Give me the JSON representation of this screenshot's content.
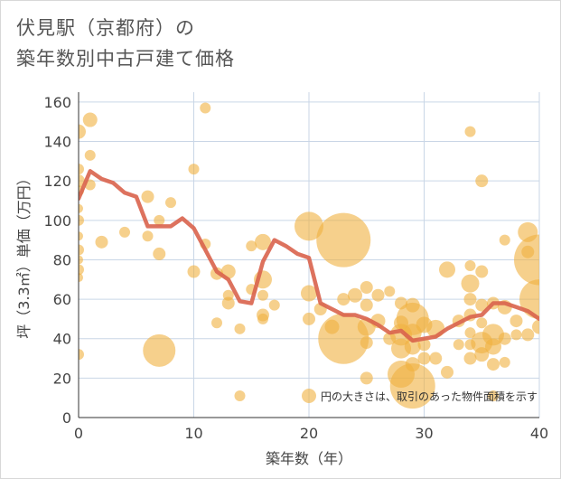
{
  "title_lines": [
    "伏見駅（京都府）の",
    "築年数別中古戸建て価格"
  ],
  "colors": {
    "bubble": "#f0b040",
    "line": "#d9634d",
    "grid": "#c9d6e6",
    "axis": "#333333"
  },
  "chart_data": {
    "type": "scatter",
    "title": "伏見駅（京都府）の 築年数別中古戸建て価格",
    "xlabel": "築年数（年）",
    "ylabel": "坪（3.3㎡）単価（万円）",
    "xlim": [
      0,
      40
    ],
    "ylim": [
      0,
      165
    ],
    "xticks": [
      0,
      10,
      20,
      30,
      40
    ],
    "yticks": [
      0,
      20,
      40,
      60,
      80,
      100,
      120,
      140,
      160
    ],
    "grid": true,
    "note": "円の大きさは、取引のあった物件面積を示す",
    "bubbles": [
      {
        "x": 0,
        "y": 145,
        "r": 8
      },
      {
        "x": 0,
        "y": 126,
        "r": 6
      },
      {
        "x": 0,
        "y": 120,
        "r": 7
      },
      {
        "x": 0,
        "y": 115,
        "r": 6
      },
      {
        "x": 0,
        "y": 106,
        "r": 5
      },
      {
        "x": 0,
        "y": 100,
        "r": 6
      },
      {
        "x": 0,
        "y": 92,
        "r": 5
      },
      {
        "x": 0,
        "y": 85,
        "r": 6
      },
      {
        "x": 0,
        "y": 80,
        "r": 5
      },
      {
        "x": 0,
        "y": 75,
        "r": 6
      },
      {
        "x": 0,
        "y": 71,
        "r": 5
      },
      {
        "x": 0,
        "y": 32,
        "r": 6
      },
      {
        "x": 1,
        "y": 151,
        "r": 8
      },
      {
        "x": 1,
        "y": 133,
        "r": 6
      },
      {
        "x": 1,
        "y": 118,
        "r": 6
      },
      {
        "x": 2,
        "y": 89,
        "r": 7
      },
      {
        "x": 4,
        "y": 94,
        "r": 6
      },
      {
        "x": 6,
        "y": 112,
        "r": 7
      },
      {
        "x": 6,
        "y": 92,
        "r": 6
      },
      {
        "x": 7,
        "y": 100,
        "r": 6
      },
      {
        "x": 7,
        "y": 83,
        "r": 7
      },
      {
        "x": 7,
        "y": 34,
        "r": 18
      },
      {
        "x": 8,
        "y": 109,
        "r": 6
      },
      {
        "x": 10,
        "y": 126,
        "r": 6
      },
      {
        "x": 10,
        "y": 74,
        "r": 7
      },
      {
        "x": 11,
        "y": 157,
        "r": 6
      },
      {
        "x": 11,
        "y": 88,
        "r": 6
      },
      {
        "x": 12,
        "y": 73,
        "r": 7
      },
      {
        "x": 12,
        "y": 48,
        "r": 6
      },
      {
        "x": 13,
        "y": 74,
        "r": 8
      },
      {
        "x": 13,
        "y": 62,
        "r": 6
      },
      {
        "x": 13,
        "y": 58,
        "r": 7
      },
      {
        "x": 14,
        "y": 45,
        "r": 6
      },
      {
        "x": 14,
        "y": 11,
        "r": 6
      },
      {
        "x": 15,
        "y": 87,
        "r": 6
      },
      {
        "x": 15,
        "y": 65,
        "r": 6
      },
      {
        "x": 16,
        "y": 89,
        "r": 9
      },
      {
        "x": 16,
        "y": 70,
        "r": 10
      },
      {
        "x": 16,
        "y": 62,
        "r": 6
      },
      {
        "x": 16,
        "y": 52,
        "r": 7
      },
      {
        "x": 16,
        "y": 50,
        "r": 6
      },
      {
        "x": 17,
        "y": 57,
        "r": 6
      },
      {
        "x": 20,
        "y": 97,
        "r": 16
      },
      {
        "x": 20,
        "y": 63,
        "r": 9
      },
      {
        "x": 20,
        "y": 50,
        "r": 7
      },
      {
        "x": 20,
        "y": 11,
        "r": 8
      },
      {
        "x": 21,
        "y": 55,
        "r": 7
      },
      {
        "x": 22,
        "y": 46,
        "r": 8
      },
      {
        "x": 23,
        "y": 90,
        "r": 30
      },
      {
        "x": 23,
        "y": 60,
        "r": 7
      },
      {
        "x": 23,
        "y": 40,
        "r": 28
      },
      {
        "x": 24,
        "y": 62,
        "r": 8
      },
      {
        "x": 25,
        "y": 66,
        "r": 7
      },
      {
        "x": 25,
        "y": 57,
        "r": 7
      },
      {
        "x": 25,
        "y": 46,
        "r": 10
      },
      {
        "x": 25,
        "y": 38,
        "r": 7
      },
      {
        "x": 25,
        "y": 20,
        "r": 7
      },
      {
        "x": 26,
        "y": 62,
        "r": 7
      },
      {
        "x": 26,
        "y": 49,
        "r": 8
      },
      {
        "x": 27,
        "y": 64,
        "r": 6
      },
      {
        "x": 27,
        "y": 40,
        "r": 7
      },
      {
        "x": 28,
        "y": 58,
        "r": 7
      },
      {
        "x": 28,
        "y": 48,
        "r": 8
      },
      {
        "x": 28,
        "y": 42,
        "r": 12
      },
      {
        "x": 28,
        "y": 35,
        "r": 11
      },
      {
        "x": 28,
        "y": 22,
        "r": 15
      },
      {
        "x": 29,
        "y": 57,
        "r": 8
      },
      {
        "x": 29,
        "y": 50,
        "r": 18
      },
      {
        "x": 29,
        "y": 43,
        "r": 10
      },
      {
        "x": 29,
        "y": 36,
        "r": 9
      },
      {
        "x": 29,
        "y": 27,
        "r": 8
      },
      {
        "x": 29,
        "y": 16,
        "r": 25
      },
      {
        "x": 30,
        "y": 47,
        "r": 9
      },
      {
        "x": 30,
        "y": 37,
        "r": 7
      },
      {
        "x": 30,
        "y": 30,
        "r": 7
      },
      {
        "x": 31,
        "y": 45,
        "r": 10
      },
      {
        "x": 31,
        "y": 30,
        "r": 7
      },
      {
        "x": 32,
        "y": 75,
        "r": 9
      },
      {
        "x": 32,
        "y": 23,
        "r": 7
      },
      {
        "x": 33,
        "y": 49,
        "r": 7
      },
      {
        "x": 33,
        "y": 37,
        "r": 6
      },
      {
        "x": 34,
        "y": 145,
        "r": 6
      },
      {
        "x": 34,
        "y": 77,
        "r": 6
      },
      {
        "x": 34,
        "y": 68,
        "r": 10
      },
      {
        "x": 34,
        "y": 60,
        "r": 7
      },
      {
        "x": 34,
        "y": 52,
        "r": 7
      },
      {
        "x": 34,
        "y": 43,
        "r": 6
      },
      {
        "x": 34,
        "y": 37,
        "r": 6
      },
      {
        "x": 34,
        "y": 30,
        "r": 7
      },
      {
        "x": 35,
        "y": 120,
        "r": 7
      },
      {
        "x": 35,
        "y": 74,
        "r": 7
      },
      {
        "x": 35,
        "y": 57,
        "r": 7
      },
      {
        "x": 35,
        "y": 48,
        "r": 6
      },
      {
        "x": 35,
        "y": 38,
        "r": 12
      },
      {
        "x": 35,
        "y": 32,
        "r": 8
      },
      {
        "x": 36,
        "y": 58,
        "r": 7
      },
      {
        "x": 36,
        "y": 42,
        "r": 12
      },
      {
        "x": 36,
        "y": 36,
        "r": 9
      },
      {
        "x": 36,
        "y": 27,
        "r": 7
      },
      {
        "x": 36,
        "y": 11,
        "r": 6
      },
      {
        "x": 37,
        "y": 90,
        "r": 6
      },
      {
        "x": 37,
        "y": 56,
        "r": 8
      },
      {
        "x": 37,
        "y": 40,
        "r": 7
      },
      {
        "x": 37,
        "y": 28,
        "r": 6
      },
      {
        "x": 38,
        "y": 49,
        "r": 7
      },
      {
        "x": 38,
        "y": 42,
        "r": 6
      },
      {
        "x": 39,
        "y": 94,
        "r": 11
      },
      {
        "x": 39,
        "y": 84,
        "r": 7
      },
      {
        "x": 39,
        "y": 42,
        "r": 7
      },
      {
        "x": 40,
        "y": 80,
        "r": 28
      },
      {
        "x": 40,
        "y": 60,
        "r": 22
      },
      {
        "x": 40,
        "y": 46,
        "r": 8
      }
    ],
    "series": [
      {
        "x": [
          0,
          1,
          2,
          3,
          4,
          5,
          6,
          7,
          8,
          9,
          10,
          11,
          12,
          13,
          14,
          15,
          16,
          17,
          18,
          19,
          20,
          21,
          22,
          23,
          24,
          25,
          26,
          27,
          28,
          29,
          30,
          31,
          32,
          33,
          34,
          35,
          36,
          37,
          38,
          39,
          40
        ],
        "y": [
          111,
          125,
          121,
          119,
          114,
          112,
          97,
          97,
          97,
          101,
          96,
          85,
          74,
          70,
          59,
          58,
          79,
          90,
          87,
          83,
          81,
          58,
          55,
          52,
          52,
          50,
          47,
          43,
          44,
          39,
          40,
          41,
          45,
          48,
          51,
          52,
          58,
          58,
          56,
          54,
          50
        ]
      }
    ]
  }
}
